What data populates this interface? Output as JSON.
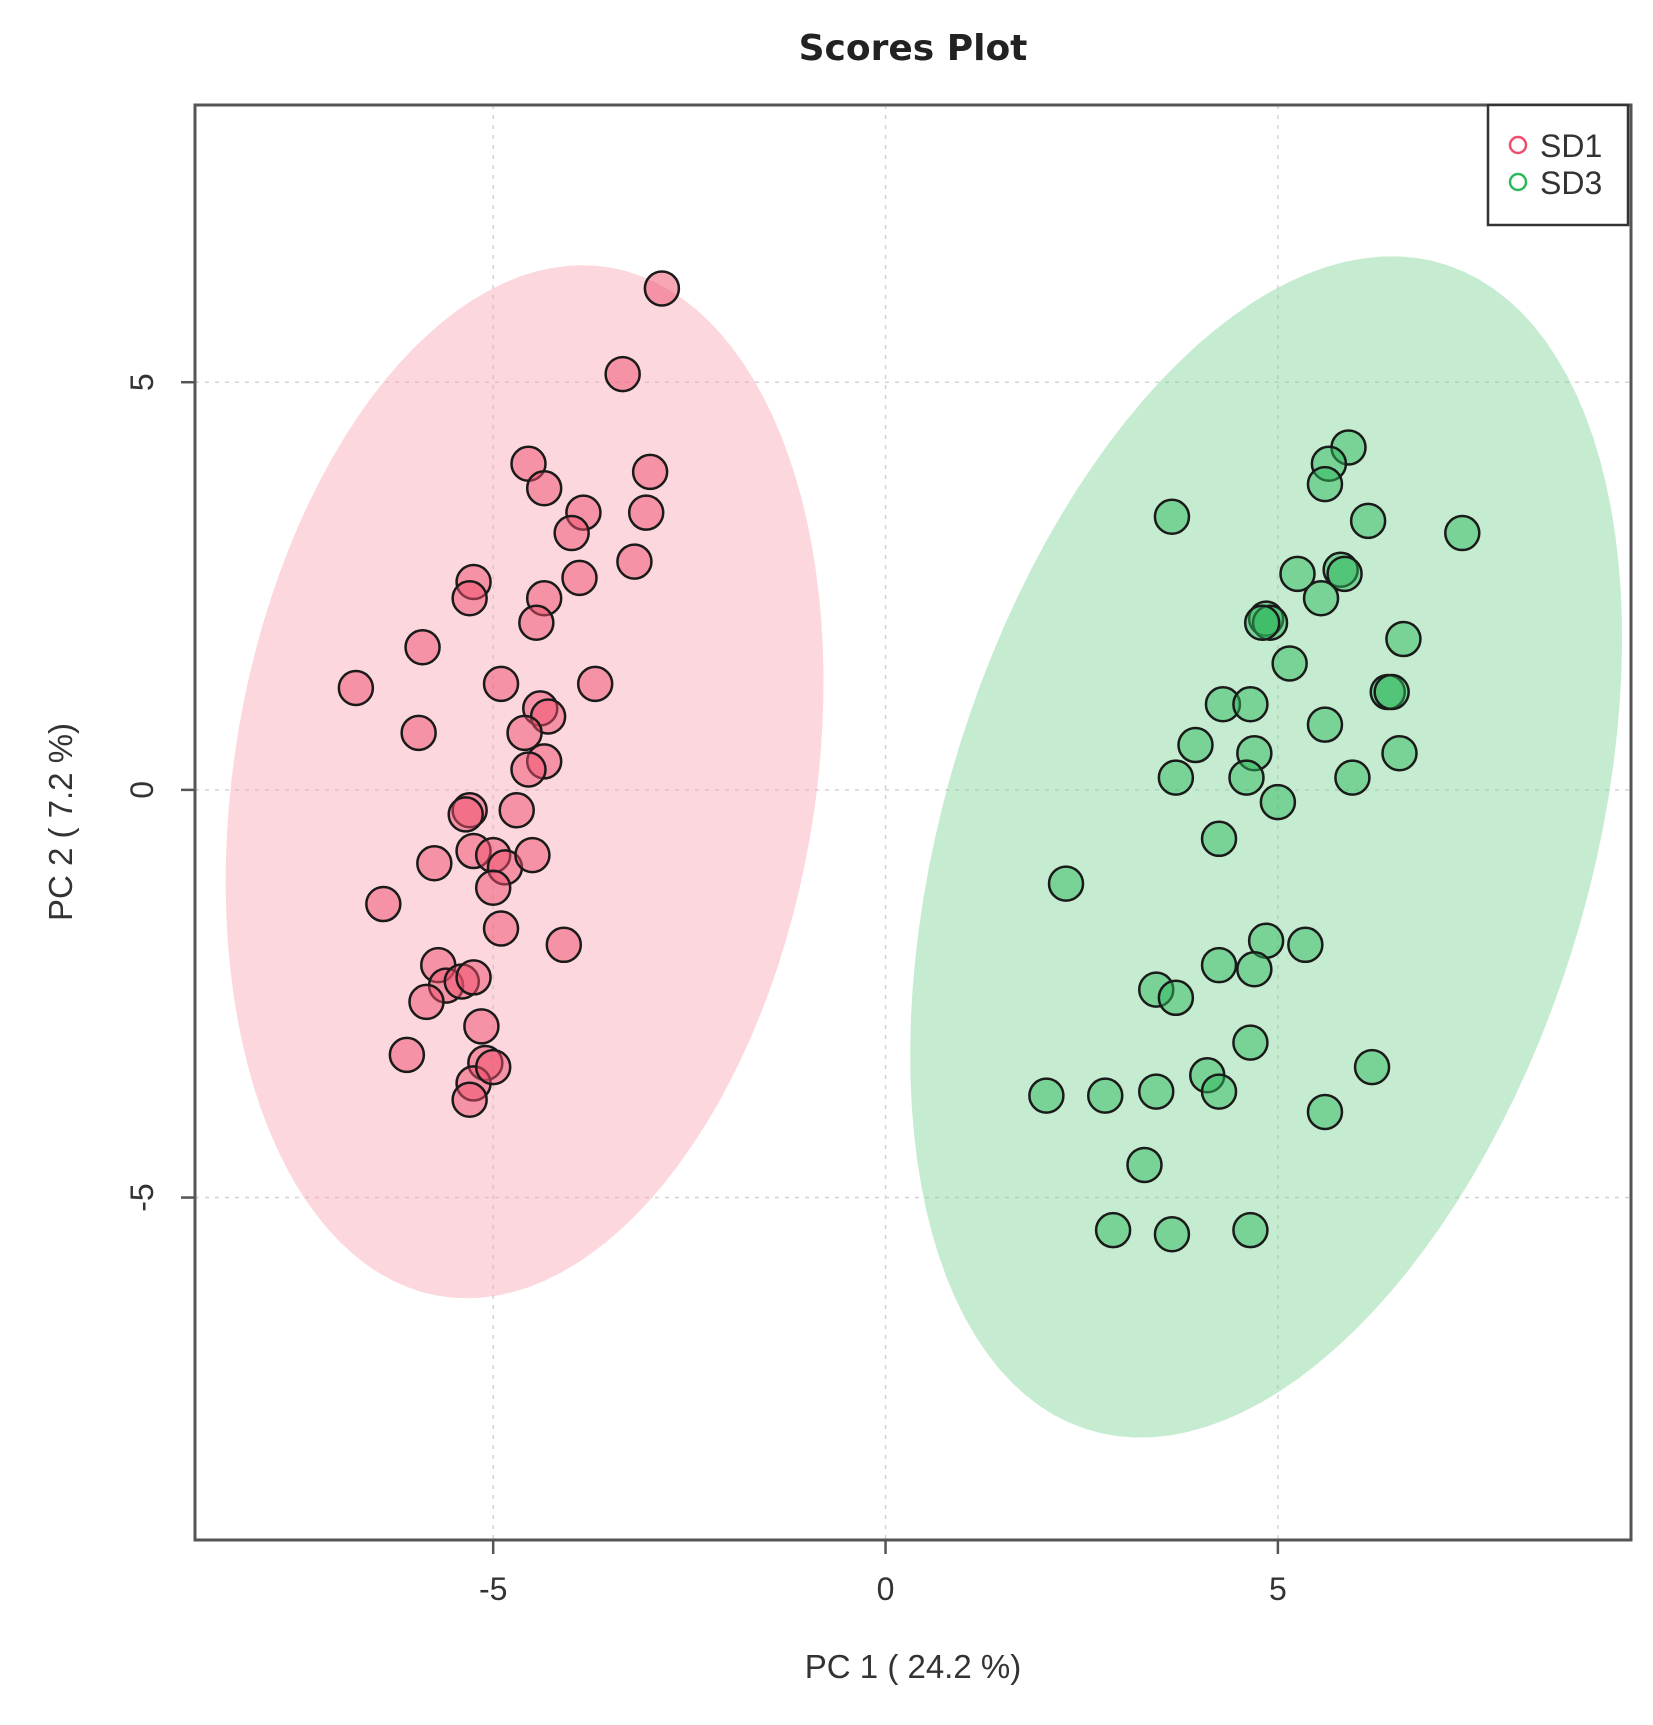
{
  "chart_data": {
    "type": "scatter",
    "title": "Scores Plot",
    "xlabel": "PC 1 ( 24.2 %)",
    "ylabel": "PC 2 ( 7.2 %)",
    "xlim": [
      -8.8,
      9.5
    ],
    "ylim": [
      -9.2,
      8.4
    ],
    "xticks": [
      -5,
      0,
      5
    ],
    "yticks": [
      5,
      0,
      -5
    ],
    "grid": true,
    "legend_position": "top-right",
    "series": [
      {
        "name": "SD1",
        "color": "#f04e6e",
        "fill": "#f9a7b3",
        "ellipse": {
          "center": [
            -4.6,
            0.1
          ],
          "semi_axis_major": 6.4,
          "semi_axis_minor": 3.7,
          "rotation_deg": 80
        },
        "points": [
          [
            -2.85,
            6.15
          ],
          [
            -3.35,
            5.1
          ],
          [
            -3.0,
            3.9
          ],
          [
            -3.05,
            3.4
          ],
          [
            -3.2,
            2.8
          ],
          [
            -4.55,
            4.0
          ],
          [
            -4.35,
            3.7
          ],
          [
            -3.85,
            3.4
          ],
          [
            -4.0,
            3.15
          ],
          [
            -3.9,
            2.6
          ],
          [
            -5.25,
            2.55
          ],
          [
            -5.3,
            2.35
          ],
          [
            -4.35,
            2.35
          ],
          [
            -4.45,
            2.05
          ],
          [
            -5.9,
            1.75
          ],
          [
            -6.75,
            1.25
          ],
          [
            -4.9,
            1.3
          ],
          [
            -3.7,
            1.3
          ],
          [
            -4.4,
            1.0
          ],
          [
            -4.3,
            0.9
          ],
          [
            -4.6,
            0.7
          ],
          [
            -5.95,
            0.7
          ],
          [
            -4.35,
            0.35
          ],
          [
            -4.55,
            0.25
          ],
          [
            -5.3,
            -0.25
          ],
          [
            -5.35,
            -0.3
          ],
          [
            -4.7,
            -0.25
          ],
          [
            -5.75,
            -0.9
          ],
          [
            -5.25,
            -0.75
          ],
          [
            -5.0,
            -0.8
          ],
          [
            -4.85,
            -0.95
          ],
          [
            -4.5,
            -0.8
          ],
          [
            -5.0,
            -1.2
          ],
          [
            -6.4,
            -1.4
          ],
          [
            -4.9,
            -1.7
          ],
          [
            -4.1,
            -1.9
          ],
          [
            -5.7,
            -2.15
          ],
          [
            -5.6,
            -2.4
          ],
          [
            -5.4,
            -2.35
          ],
          [
            -5.25,
            -2.3
          ],
          [
            -5.85,
            -2.6
          ],
          [
            -5.15,
            -2.9
          ],
          [
            -6.1,
            -3.25
          ],
          [
            -5.1,
            -3.35
          ],
          [
            -5.25,
            -3.6
          ],
          [
            -5.3,
            -3.8
          ],
          [
            -5.0,
            -3.4
          ]
        ]
      },
      {
        "name": "SD3",
        "color": "#2eb85c",
        "fill": "#7fd597",
        "ellipse": {
          "center": [
            4.85,
            -0.7
          ],
          "semi_axis_major": 7.5,
          "semi_axis_minor": 4.1,
          "rotation_deg": 72
        },
        "points": [
          [
            5.9,
            4.2
          ],
          [
            5.65,
            4.0
          ],
          [
            5.6,
            3.75
          ],
          [
            3.65,
            3.35
          ],
          [
            6.15,
            3.3
          ],
          [
            7.35,
            3.15
          ],
          [
            5.25,
            2.65
          ],
          [
            5.8,
            2.7
          ],
          [
            5.85,
            2.65
          ],
          [
            5.55,
            2.35
          ],
          [
            4.85,
            2.1
          ],
          [
            4.9,
            2.05
          ],
          [
            4.8,
            2.05
          ],
          [
            6.6,
            1.85
          ],
          [
            5.15,
            1.55
          ],
          [
            6.4,
            1.2
          ],
          [
            6.45,
            1.2
          ],
          [
            4.3,
            1.05
          ],
          [
            4.65,
            1.05
          ],
          [
            5.6,
            0.8
          ],
          [
            3.95,
            0.55
          ],
          [
            4.7,
            0.45
          ],
          [
            6.55,
            0.45
          ],
          [
            3.7,
            0.15
          ],
          [
            4.6,
            0.15
          ],
          [
            5.95,
            0.15
          ],
          [
            5.0,
            -0.15
          ],
          [
            4.25,
            -0.6
          ],
          [
            2.3,
            -1.15
          ],
          [
            4.85,
            -1.85
          ],
          [
            5.35,
            -1.9
          ],
          [
            4.25,
            -2.15
          ],
          [
            4.7,
            -2.2
          ],
          [
            3.45,
            -2.45
          ],
          [
            3.7,
            -2.55
          ],
          [
            4.65,
            -3.1
          ],
          [
            6.2,
            -3.4
          ],
          [
            4.1,
            -3.5
          ],
          [
            4.25,
            -3.7
          ],
          [
            2.05,
            -3.75
          ],
          [
            2.8,
            -3.75
          ],
          [
            3.45,
            -3.7
          ],
          [
            5.6,
            -3.95
          ],
          [
            3.3,
            -4.6
          ],
          [
            2.9,
            -5.4
          ],
          [
            3.65,
            -5.45
          ],
          [
            4.65,
            -5.4
          ]
        ]
      }
    ]
  }
}
